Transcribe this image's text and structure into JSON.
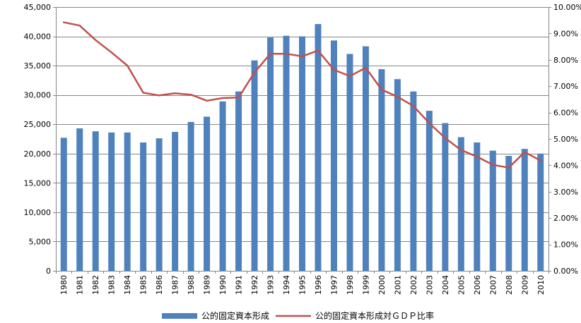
{
  "chart_data": {
    "type": "bar",
    "categories": [
      "1980",
      "1981",
      "1982",
      "1983",
      "1984",
      "1985",
      "1986",
      "1987",
      "1988",
      "1989",
      "1990",
      "1991",
      "1992",
      "1993",
      "1994",
      "1995",
      "1996",
      "1997",
      "1998",
      "1999",
      "2000",
      "2001",
      "2002",
      "2003",
      "2004",
      "2005",
      "2006",
      "2007",
      "2008",
      "2009",
      "2010"
    ],
    "series": [
      {
        "name": "公的固定資本形成",
        "type": "bar",
        "axis": "left",
        "color": "#4F81BD",
        "values": [
          22700,
          24300,
          23800,
          23600,
          23600,
          21900,
          22600,
          23700,
          25400,
          26300,
          28900,
          30600,
          35900,
          39800,
          40100,
          40000,
          42100,
          39300,
          37000,
          38300,
          34400,
          32700,
          30600,
          27300,
          25200,
          22800,
          21900,
          20500,
          19600,
          20800,
          20000
        ]
      },
      {
        "name": "公的固定資本形成対ＧＤＰ比率",
        "type": "line",
        "axis": "right",
        "color": "#C0504D",
        "values": [
          9.42,
          9.3,
          8.75,
          8.28,
          7.78,
          6.75,
          6.65,
          6.73,
          6.68,
          6.45,
          6.55,
          6.57,
          7.52,
          8.23,
          8.23,
          8.13,
          8.35,
          7.62,
          7.38,
          7.7,
          6.87,
          6.6,
          6.25,
          5.6,
          5.03,
          4.58,
          4.33,
          4.02,
          3.91,
          4.5,
          4.18
        ]
      }
    ],
    "y_left": {
      "min": 0,
      "max": 45000,
      "step": 5000,
      "tick_labels": [
        "0",
        "5,000",
        "10,000",
        "15,000",
        "20,000",
        "25,000",
        "30,000",
        "35,000",
        "40,000",
        "45,000"
      ]
    },
    "y_right": {
      "min": 0,
      "max": 10,
      "step": 1,
      "tick_labels": [
        "0.00%",
        "1.00%",
        "2.00%",
        "3.00%",
        "4.00%",
        "5.00%",
        "6.00%",
        "7.00%",
        "8.00%",
        "9.00%",
        "10.00%"
      ]
    },
    "grid": true,
    "legend_position": "bottom",
    "title": "",
    "xlabel": "",
    "ylabel": ""
  }
}
